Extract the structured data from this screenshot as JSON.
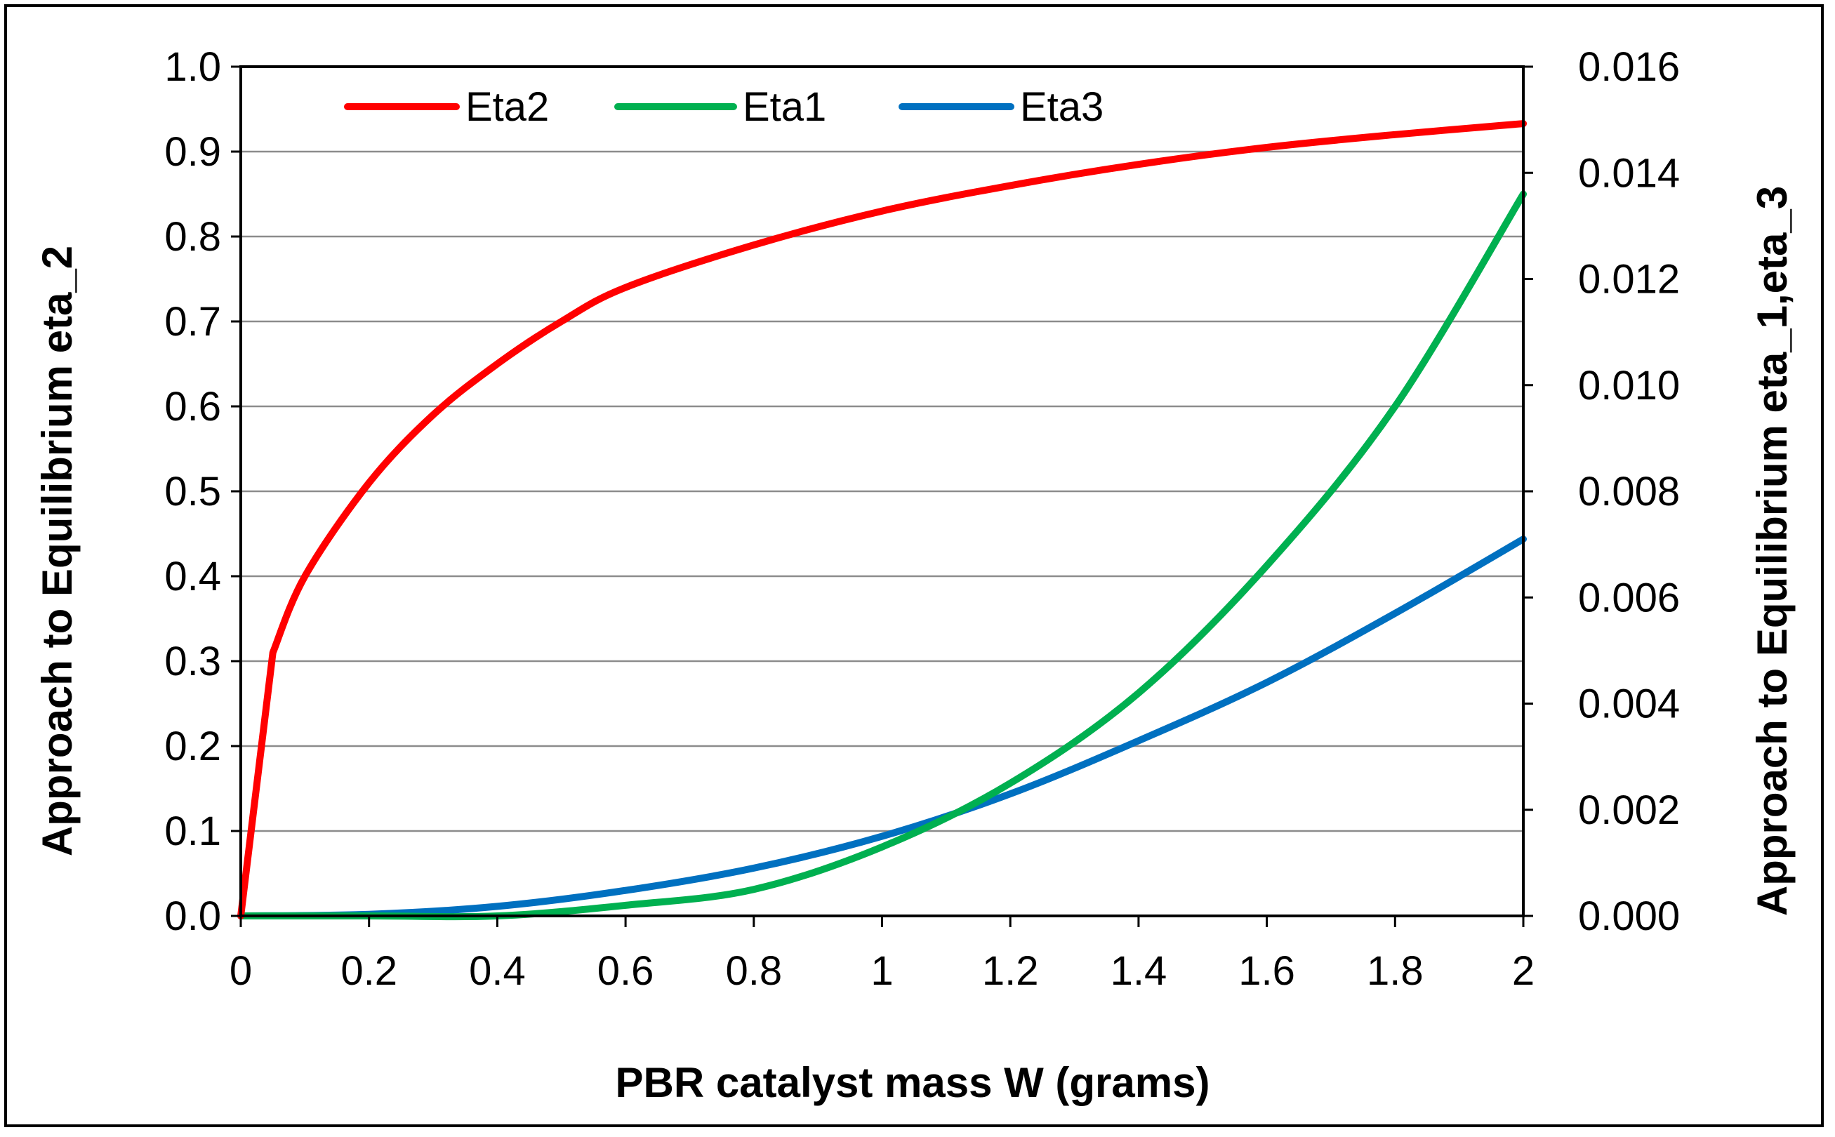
{
  "chart_data": {
    "type": "line",
    "title": "",
    "xlabel": "PBR catalyst mass W (grams)",
    "ylabel_left": "Approach to Equilibrium eta_2",
    "ylabel_right": "Approach to Equilibrium eta_1,eta_3",
    "xlim": [
      0,
      2
    ],
    "ylim_left": [
      0,
      1.0
    ],
    "ylim_right": [
      0,
      0.016
    ],
    "x_ticks": [
      "0",
      "0.2",
      "0.4",
      "0.6",
      "0.8",
      "1",
      "1.2",
      "1.4",
      "1.6",
      "1.8",
      "2"
    ],
    "y_left_ticks": [
      "0.0",
      "0.1",
      "0.2",
      "0.3",
      "0.4",
      "0.5",
      "0.6",
      "0.7",
      "0.8",
      "0.9",
      "1.0"
    ],
    "y_right_ticks": [
      "0.000",
      "0.002",
      "0.004",
      "0.006",
      "0.008",
      "0.010",
      "0.012",
      "0.014",
      "0.016"
    ],
    "grid": true,
    "legend_position": "top-left",
    "series": [
      {
        "name": "Eta2",
        "axis": "left",
        "color": "#ff0000",
        "x": [
          0,
          0.05,
          0.1,
          0.2,
          0.3,
          0.4,
          0.5,
          0.6,
          0.8,
          1.0,
          1.2,
          1.4,
          1.6,
          1.8,
          2.0
        ],
        "y": [
          0.0,
          0.31,
          0.4,
          0.51,
          0.59,
          0.65,
          0.7,
          0.74,
          0.79,
          0.83,
          0.86,
          0.885,
          0.905,
          0.92,
          0.933
        ]
      },
      {
        "name": "Eta1",
        "axis": "right",
        "color": "#00b050",
        "x": [
          0,
          0.2,
          0.4,
          0.6,
          0.8,
          1.0,
          1.2,
          1.4,
          1.6,
          1.8,
          2.0
        ],
        "y": [
          0.0,
          0.0,
          0.0,
          0.0002,
          0.0005,
          0.0013,
          0.0025,
          0.0042,
          0.0066,
          0.0096,
          0.0136
        ]
      },
      {
        "name": "Eta3",
        "axis": "right",
        "color": "#0070c0",
        "x": [
          0,
          0.2,
          0.4,
          0.6,
          0.8,
          1.0,
          1.2,
          1.4,
          1.6,
          1.8,
          2.0
        ],
        "y": [
          0.0,
          3e-05,
          0.00018,
          0.00048,
          0.0009,
          0.0015,
          0.0023,
          0.0033,
          0.0044,
          0.0057,
          0.0071
        ]
      }
    ]
  }
}
